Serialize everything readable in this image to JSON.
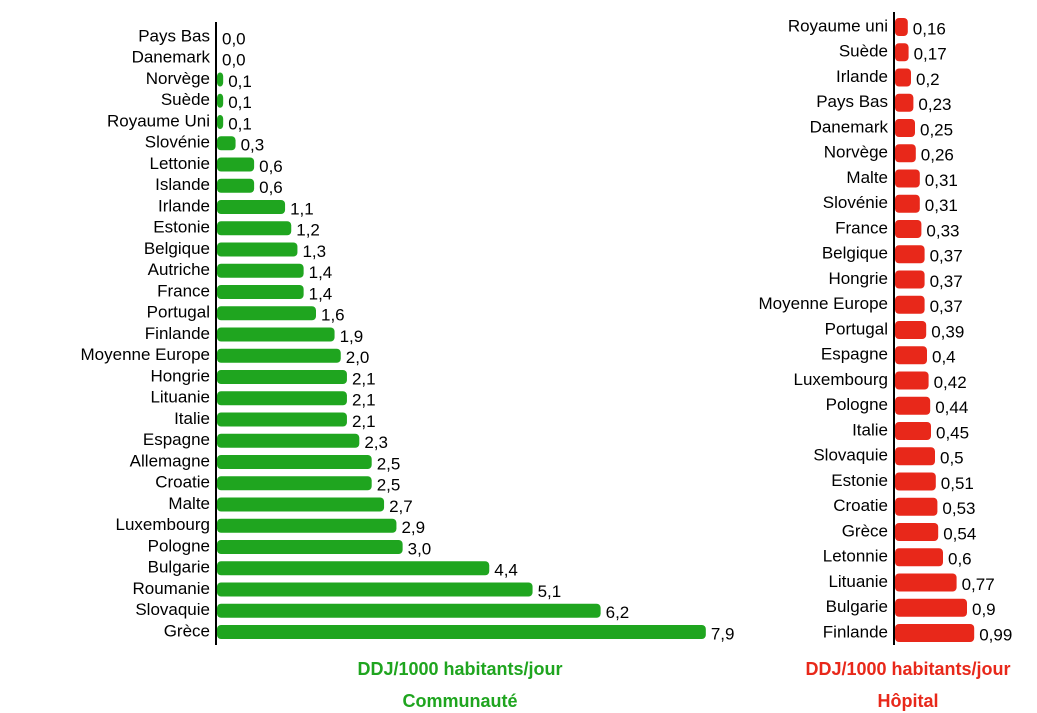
{
  "chart_data": [
    {
      "type": "bar",
      "orientation": "horizontal",
      "color": "#1fa51f",
      "xlabel": "DDJ/1000 habitants/jour",
      "title": "Communauté",
      "categories": [
        "Pays Bas",
        "Danemark",
        "Norvège",
        "Suède",
        "Royaume Uni",
        "Slovénie",
        "Lettonie",
        "Islande",
        "Irlande",
        "Estonie",
        "Belgique",
        "Autriche",
        "France",
        "Portugal",
        "Finlande",
        "Moyenne Europe",
        "Hongrie",
        "Lituanie",
        "Italie",
        "Espagne",
        "Allemagne",
        "Croatie",
        "Malte",
        "Luxembourg",
        "Pologne",
        "Bulgarie",
        "Roumanie",
        "Slovaquie",
        "Grèce"
      ],
      "values": [
        0.0,
        0.0,
        0.1,
        0.1,
        0.1,
        0.3,
        0.6,
        0.6,
        1.1,
        1.2,
        1.3,
        1.4,
        1.4,
        1.6,
        1.9,
        2.0,
        2.1,
        2.1,
        2.1,
        2.3,
        2.5,
        2.5,
        2.7,
        2.9,
        3.0,
        4.4,
        5.1,
        6.2,
        7.9
      ],
      "value_labels": [
        "0,0",
        "0,0",
        "0,1",
        "0,1",
        "0,1",
        "0,3",
        "0,6",
        "0,6",
        "1,1",
        "1,2",
        "1,3",
        "1,4",
        "1,4",
        "1,6",
        "1,9",
        "2,0",
        "2,1",
        "2,1",
        "2,1",
        "2,3",
        "2,5",
        "2,5",
        "2,7",
        "2,9",
        "3,0",
        "4,4",
        "5,1",
        "6,2",
        "7,9"
      ],
      "xlim": [
        0,
        8
      ]
    },
    {
      "type": "bar",
      "orientation": "horizontal",
      "color": "#e8281a",
      "xlabel": "DDJ/1000 habitants/jour",
      "title": "Hôpital",
      "categories": [
        "Royaume uni",
        "Suède",
        "Irlande",
        "Pays Bas",
        "Danemark",
        "Norvège",
        "Malte",
        "Slovénie",
        "France",
        "Belgique",
        "Hongrie",
        "Moyenne Europe",
        "Portugal",
        "Espagne",
        "Luxembourg",
        "Pologne",
        "Italie",
        "Slovaquie",
        "Estonie",
        "Croatie",
        "Grèce",
        "Letonnie",
        "Lituanie",
        "Bulgarie",
        "Finlande"
      ],
      "values": [
        0.16,
        0.17,
        0.2,
        0.23,
        0.25,
        0.26,
        0.31,
        0.31,
        0.33,
        0.37,
        0.37,
        0.37,
        0.39,
        0.4,
        0.42,
        0.44,
        0.45,
        0.5,
        0.51,
        0.53,
        0.54,
        0.6,
        0.77,
        0.9,
        0.99
      ],
      "value_labels": [
        "0,16",
        "0,17",
        "0,2",
        "0,23",
        "0,25",
        "0,26",
        "0,31",
        "0,31",
        "0,33",
        "0,37",
        "0,37",
        "0,37",
        "0,39",
        "0,4",
        "0,42",
        "0,44",
        "0,45",
        "0,5",
        "0,51",
        "0,53",
        "0,54",
        "0,6",
        "0,77",
        "0,9",
        "0,99"
      ],
      "xlim": [
        0,
        1
      ]
    }
  ]
}
